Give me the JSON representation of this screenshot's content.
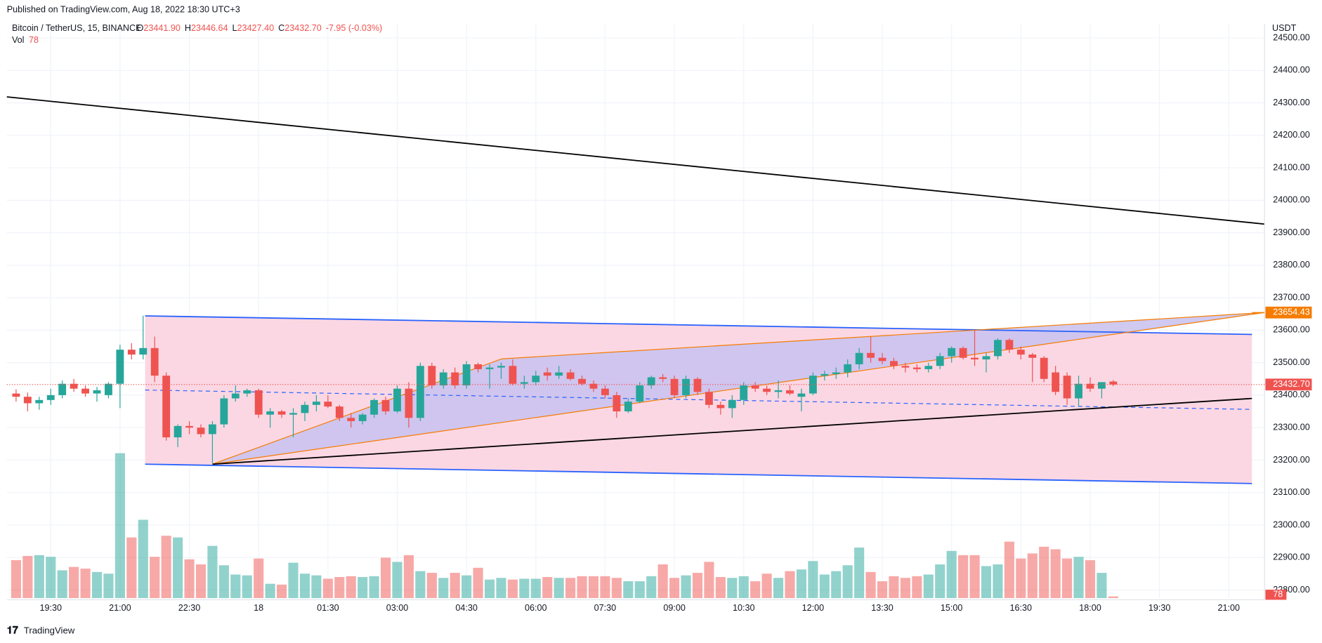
{
  "header": {
    "published": "Published on TradingView.com, Aug 18, 2022 18:30 UTC+3",
    "symbol": "Bitcoin / TetherUS, 15, BINANCE",
    "ohlc_legend": [
      {
        "key": "O",
        "value": "23441.90"
      },
      {
        "key": "H",
        "value": "23446.64"
      },
      {
        "key": "L",
        "value": "23427.40"
      },
      {
        "key": "C",
        "value": "23432.70"
      }
    ],
    "change": "-7.95 (-0.03%)",
    "volume_label": "Vol"
  },
  "footer": {
    "brand": "TradingView"
  },
  "chart_data": {
    "type": "candlestick",
    "currency": "USDT",
    "ylim": [
      22775,
      24539
    ],
    "yticks": [
      {
        "value": 22800,
        "label": "22800.00"
      },
      {
        "value": 22900,
        "label": "22900.00"
      },
      {
        "value": 23000,
        "label": "23000.00"
      },
      {
        "value": 23100,
        "label": "23100.00"
      },
      {
        "value": 23200,
        "label": "23200.00"
      },
      {
        "value": 23300,
        "label": "23300.00"
      },
      {
        "value": 23400,
        "label": "23400.00"
      },
      {
        "value": 23500,
        "label": "23500.00"
      },
      {
        "value": 23600,
        "label": "23600.00"
      },
      {
        "value": 23700,
        "label": "23700.00"
      },
      {
        "value": 23800,
        "label": "23800.00"
      },
      {
        "value": 23900,
        "label": "23900.00"
      },
      {
        "value": 24000,
        "label": "24000.00"
      },
      {
        "value": 24100,
        "label": "24100.00"
      },
      {
        "value": 24200,
        "label": "24200.00"
      },
      {
        "value": 24300,
        "label": "24300.00"
      },
      {
        "value": 24400,
        "label": "24400.00"
      },
      {
        "value": 24500,
        "label": "24500.00"
      }
    ],
    "xlim": [
      -0.8,
      108.1
    ],
    "xticks": [
      {
        "value": 3,
        "label": "19:30"
      },
      {
        "value": 9,
        "label": "21:00"
      },
      {
        "value": 15,
        "label": "22:30"
      },
      {
        "value": 21,
        "label": "18"
      },
      {
        "value": 27,
        "label": "01:30"
      },
      {
        "value": 33,
        "label": "03:00"
      },
      {
        "value": 39,
        "label": "04:30"
      },
      {
        "value": 45,
        "label": "06:00"
      },
      {
        "value": 51,
        "label": "07:30"
      },
      {
        "value": 57,
        "label": "09:00"
      },
      {
        "value": 63,
        "label": "10:30"
      },
      {
        "value": 69,
        "label": "12:00"
      },
      {
        "value": 75,
        "label": "13:30"
      },
      {
        "value": 81,
        "label": "15:00"
      },
      {
        "value": 87,
        "label": "16:30"
      },
      {
        "value": 93,
        "label": "18:00"
      },
      {
        "value": 99,
        "label": "19:30"
      },
      {
        "value": 105,
        "label": "21:00"
      }
    ],
    "up_color": "#26a69a",
    "down_color": "#ef5350",
    "grid": true,
    "candles": [
      [
        23405,
        23418,
        23380,
        23395
      ],
      [
        23395,
        23408,
        23350,
        23375
      ],
      [
        23375,
        23395,
        23355,
        23385
      ],
      [
        23385,
        23420,
        23370,
        23400
      ],
      [
        23400,
        23445,
        23390,
        23435
      ],
      [
        23435,
        23450,
        23410,
        23420
      ],
      [
        23420,
        23430,
        23395,
        23405
      ],
      [
        23405,
        23425,
        23380,
        23415
      ],
      [
        23400,
        23440,
        23390,
        23435
      ],
      [
        23435,
        23555,
        23360,
        23540
      ],
      [
        23540,
        23560,
        23510,
        23525
      ],
      [
        23525,
        23645,
        23510,
        23545
      ],
      [
        23545,
        23580,
        23440,
        23460
      ],
      [
        23460,
        23470,
        23260,
        23270
      ],
      [
        23270,
        23310,
        23240,
        23305
      ],
      [
        23305,
        23320,
        23280,
        23300
      ],
      [
        23300,
        23310,
        23270,
        23280
      ],
      [
        23280,
        23320,
        23190,
        23310
      ],
      [
        23310,
        23400,
        23300,
        23390
      ],
      [
        23390,
        23430,
        23380,
        23405
      ],
      [
        23405,
        23420,
        23395,
        23415
      ],
      [
        23415,
        23420,
        23330,
        23340
      ],
      [
        23340,
        23360,
        23300,
        23350
      ],
      [
        23350,
        23355,
        23330,
        23340
      ],
      [
        23340,
        23360,
        23270,
        23345
      ],
      [
        23345,
        23380,
        23320,
        23370
      ],
      [
        23370,
        23400,
        23350,
        23380
      ],
      [
        23380,
        23400,
        23360,
        23365
      ],
      [
        23365,
        23370,
        23320,
        23330
      ],
      [
        23330,
        23345,
        23300,
        23320
      ],
      [
        23320,
        23345,
        23310,
        23340
      ],
      [
        23340,
        23390,
        23330,
        23385
      ],
      [
        23385,
        23395,
        23340,
        23350
      ],
      [
        23350,
        23430,
        23345,
        23420
      ],
      [
        23420,
        23440,
        23300,
        23330
      ],
      [
        23330,
        23500,
        23320,
        23490
      ],
      [
        23490,
        23500,
        23420,
        23430
      ],
      [
        23430,
        23480,
        23420,
        23470
      ],
      [
        23470,
        23485,
        23420,
        23430
      ],
      [
        23430,
        23505,
        23420,
        23495
      ],
      [
        23495,
        23500,
        23470,
        23480
      ],
      [
        23480,
        23495,
        23420,
        23485
      ],
      [
        23485,
        23500,
        23450,
        23490
      ],
      [
        23490,
        23510,
        23430,
        23435
      ],
      [
        23435,
        23460,
        23420,
        23440
      ],
      [
        23440,
        23475,
        23430,
        23460
      ],
      [
        23470,
        23485,
        23445,
        23460
      ],
      [
        23460,
        23490,
        23450,
        23470
      ],
      [
        23470,
        23480,
        23445,
        23450
      ],
      [
        23450,
        23460,
        23430,
        23435
      ],
      [
        23435,
        23445,
        23410,
        23420
      ],
      [
        23420,
        23430,
        23390,
        23400
      ],
      [
        23400,
        23410,
        23330,
        23350
      ],
      [
        23350,
        23390,
        23345,
        23380
      ],
      [
        23380,
        23440,
        23375,
        23430
      ],
      [
        23430,
        23460,
        23420,
        23455
      ],
      [
        23455,
        23465,
        23440,
        23450
      ],
      [
        23450,
        23460,
        23390,
        23400
      ],
      [
        23400,
        23460,
        23390,
        23450
      ],
      [
        23450,
        23455,
        23400,
        23410
      ],
      [
        23410,
        23420,
        23360,
        23370
      ],
      [
        23370,
        23380,
        23340,
        23360
      ],
      [
        23360,
        23400,
        23330,
        23385
      ],
      [
        23385,
        23440,
        23370,
        23430
      ],
      [
        23430,
        23440,
        23410,
        23420
      ],
      [
        23420,
        23430,
        23400,
        23410
      ],
      [
        23410,
        23445,
        23390,
        23415
      ],
      [
        23415,
        23430,
        23400,
        23405
      ],
      [
        23395,
        23420,
        23350,
        23405
      ],
      [
        23405,
        23470,
        23400,
        23460
      ],
      [
        23460,
        23475,
        23445,
        23465
      ],
      [
        23465,
        23485,
        23450,
        23470
      ],
      [
        23470,
        23510,
        23455,
        23495
      ],
      [
        23495,
        23545,
        23480,
        23530
      ],
      [
        23530,
        23580,
        23500,
        23515
      ],
      [
        23515,
        23530,
        23495,
        23505
      ],
      [
        23505,
        23515,
        23480,
        23490
      ],
      [
        23490,
        23500,
        23470,
        23485
      ],
      [
        23485,
        23495,
        23470,
        23480
      ],
      [
        23480,
        23500,
        23470,
        23490
      ],
      [
        23490,
        23530,
        23480,
        23520
      ],
      [
        23520,
        23550,
        23500,
        23545
      ],
      [
        23545,
        23550,
        23510,
        23515
      ],
      [
        23515,
        23600,
        23490,
        23510
      ],
      [
        23510,
        23530,
        23470,
        23520
      ],
      [
        23520,
        23575,
        23510,
        23570
      ],
      [
        23570,
        23575,
        23530,
        23540
      ],
      [
        23540,
        23550,
        23510,
        23525
      ],
      [
        23525,
        23530,
        23440,
        23515
      ],
      [
        23515,
        23520,
        23440,
        23450
      ],
      [
        23470,
        23490,
        23400,
        23410
      ],
      [
        23460,
        23470,
        23370,
        23390
      ],
      [
        23390,
        23460,
        23365,
        23435
      ],
      [
        23435,
        23455,
        23410,
        23420
      ],
      [
        23420,
        23440,
        23390,
        23440
      ],
      [
        23441.9,
        23446.64,
        23427.4,
        23432.7
      ]
    ],
    "volumes": [
      1755,
      1950,
      1989,
      1911,
      1287,
      1443,
      1365,
      1209,
      1131,
      6708,
      2808,
      3627,
      1911,
      2886,
      2808,
      1794,
      1560,
      2418,
      1521,
      1092,
      1053,
      1833,
      663,
      624,
      1638,
      1131,
      1053,
      897,
      975,
      1014,
      975,
      1014,
      1872,
      1677,
      1989,
      1248,
      1170,
      936,
      1170,
      1053,
      1404,
      858,
      936,
      858,
      897,
      897,
      975,
      936,
      936,
      1014,
      1014,
      1014,
      936,
      780,
      780,
      1014,
      1560,
      936,
      1053,
      1170,
      1677,
      975,
      936,
      1014,
      780,
      1131,
      936,
      1248,
      1326,
      1716,
      1092,
      1248,
      1521,
      2340,
      1209,
      780,
      1014,
      936,
      1014,
      1092,
      1560,
      2184,
      1989,
      1989,
      1482,
      1560,
      2613,
      1833,
      2067,
      2379,
      2262,
      1833,
      1911,
      1755,
      1170,
      78
    ],
    "last_price": {
      "value": 23432.7,
      "label": "23432.70"
    },
    "drawing_label": {
      "value": 23654.43,
      "label": "23654.43"
    }
  }
}
